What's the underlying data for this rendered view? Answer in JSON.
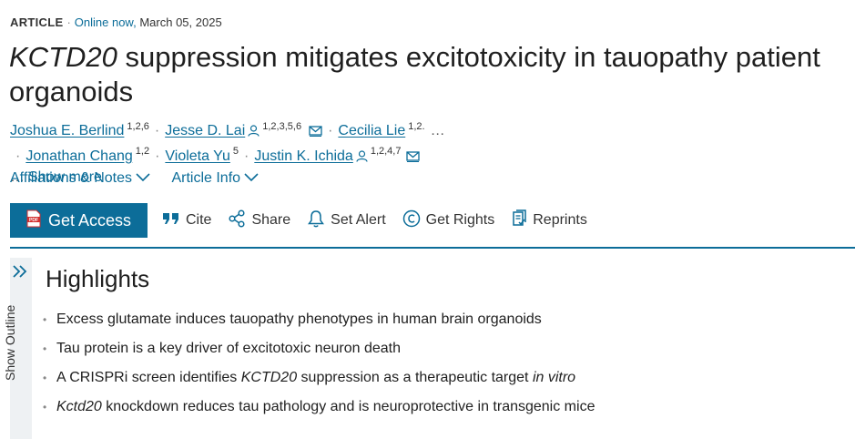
{
  "meta": {
    "type": "ARTICLE",
    "separator": "·",
    "status": "Online now,",
    "date": "March 05, 2025"
  },
  "title": {
    "gene": "KCTD20",
    "rest_line1": " suppression mitigates excitotoxicity in tauopathy patient",
    "rest_line2": "organoids"
  },
  "authors": [
    {
      "name": "Joshua E. Berlind",
      "sup": "1,2,6"
    },
    {
      "name": "Jesse D. Lai",
      "sup": "1,2,3,5,6",
      "corresponding": true
    },
    {
      "name": "Cecilia Lie",
      "sup": "1,2."
    },
    {
      "name": "Jonathan Chang",
      "sup": "1,2"
    },
    {
      "name": "Violeta Yu",
      "sup": "5"
    },
    {
      "name": "Justin K. Ichida",
      "sup": "1,2,4,7",
      "corresponding": true
    }
  ],
  "authors_ellipsis": "…",
  "show_more": "Show more",
  "links": {
    "affiliations": "Affiliations & Notes",
    "article_info": "Article Info"
  },
  "toolbar": {
    "get_access": "Get Access",
    "cite": "Cite",
    "share": "Share",
    "set_alert": "Set Alert",
    "get_rights": "Get Rights",
    "reprints": "Reprints"
  },
  "outline": {
    "label": "Show Outline"
  },
  "highlights": {
    "title": "Highlights",
    "items": [
      {
        "parts": [
          {
            "text": "Excess glutamate induces tauopathy phenotypes in human brain organoids"
          }
        ]
      },
      {
        "parts": [
          {
            "text": "Tau protein is a key driver of excitotoxic neuron death"
          }
        ]
      },
      {
        "parts": [
          {
            "text": "A CRISPRi screen identifies "
          },
          {
            "text": "KCTD20",
            "italic": true
          },
          {
            "text": " suppression as a therapeutic target "
          },
          {
            "text": "in vitro",
            "italic": true
          }
        ]
      },
      {
        "parts": [
          {
            "text": "Kctd20",
            "italic": true
          },
          {
            "text": " knockdown reduces tau pathology and is neuroprotective in transgenic mice"
          }
        ]
      }
    ]
  },
  "colors": {
    "accent": "#0c6d99",
    "text": "#1f1f1f",
    "pdf_red": "#d32f2f"
  },
  "icons": [
    "person-icon",
    "mail-icon",
    "chevron-down-icon",
    "pdf-icon",
    "quote-icon",
    "share-icon",
    "bell-icon",
    "copyright-icon",
    "reprints-icon",
    "double-chevron-right-icon"
  ]
}
